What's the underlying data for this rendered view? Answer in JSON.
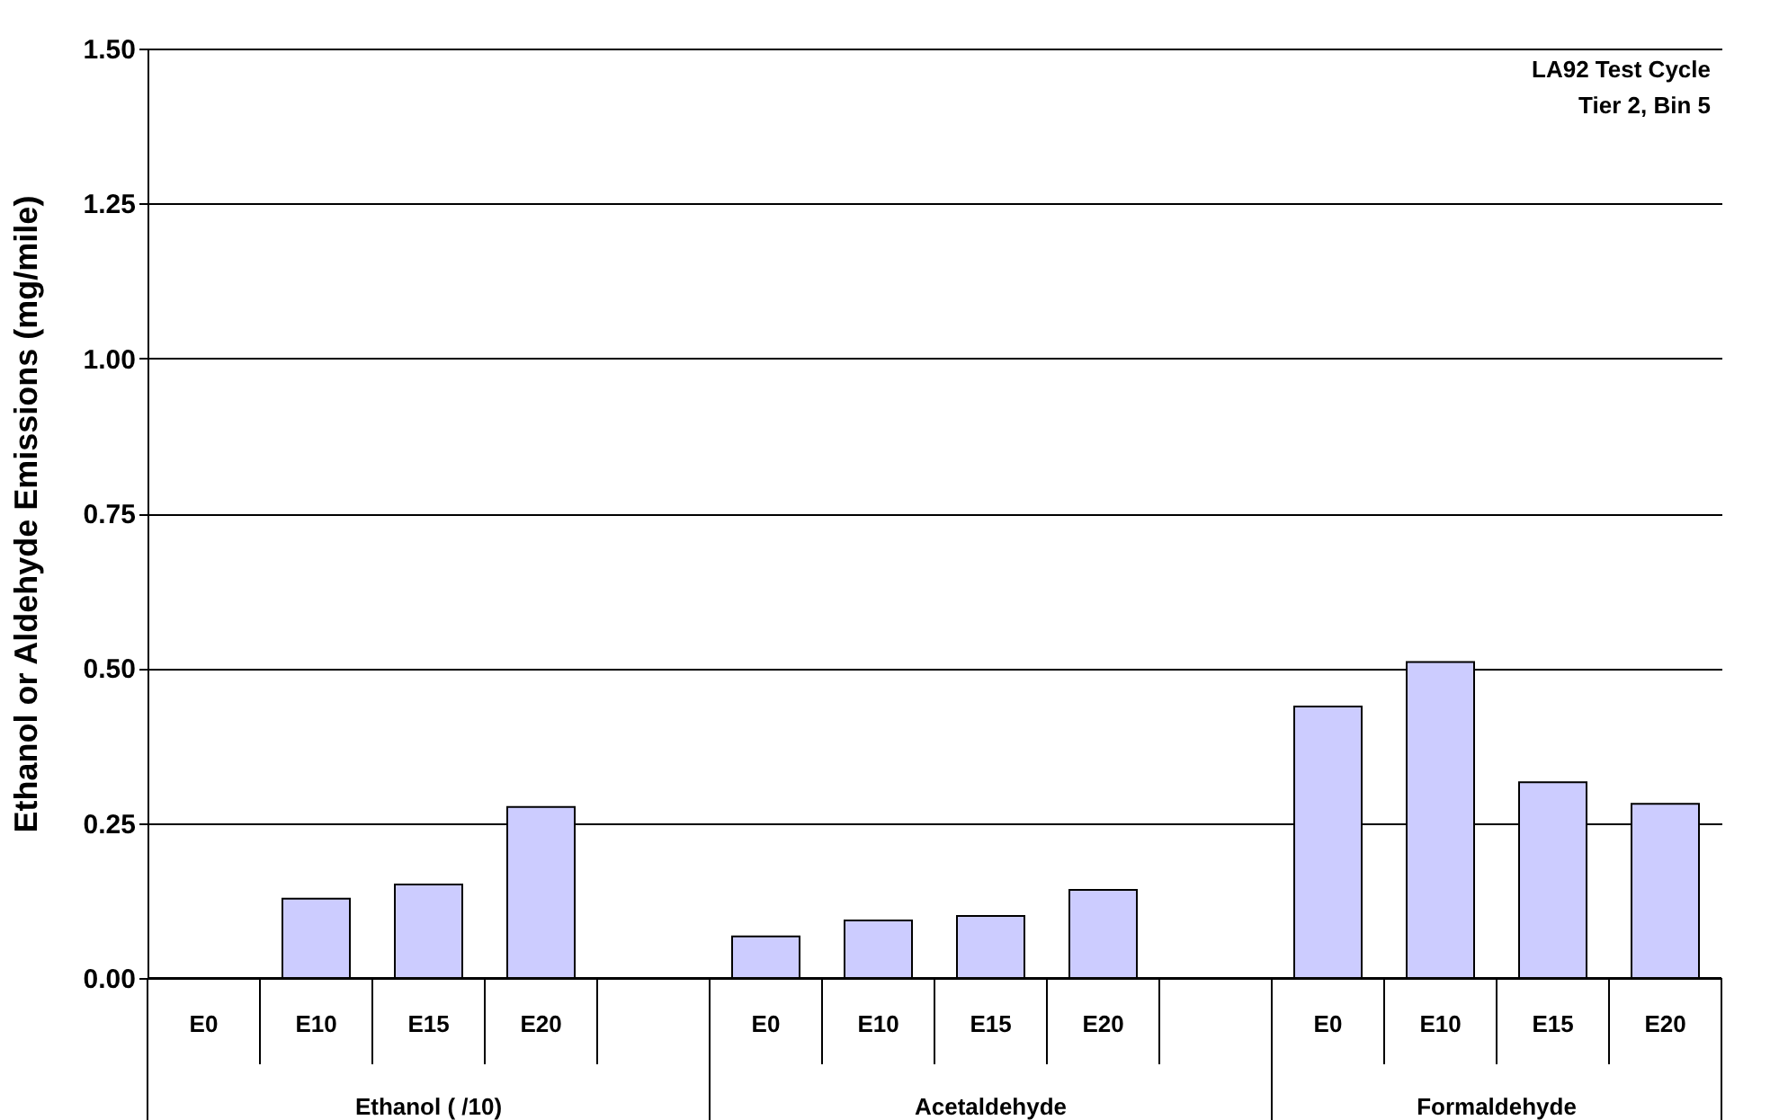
{
  "chart_data": {
    "type": "bar",
    "ylabel": "Ethanol or Aldehyde Emissions (mg/mile)",
    "categories": [
      "E0",
      "E10",
      "E15",
      "E20",
      null,
      "E0",
      "E10",
      "E15",
      "E20",
      null,
      "E0",
      "E10",
      "E15",
      "E20"
    ],
    "values": [
      null,
      0.128,
      0.151,
      0.276,
      null,
      0.067,
      0.093,
      0.1,
      0.142,
      null,
      0.438,
      0.51,
      0.316,
      0.281
    ],
    "color": "#ccccff",
    "ylim": [
      0,
      1.5
    ],
    "yticks": [
      {
        "value": 0,
        "label": "0.00"
      },
      {
        "value": 0.25,
        "label": "0.25"
      },
      {
        "value": 0.5,
        "label": "0.50"
      },
      {
        "value": 0.75,
        "label": "0.75"
      },
      {
        "value": 1.0,
        "label": "1.00"
      },
      {
        "value": 1.25,
        "label": "1.25"
      },
      {
        "value": 1.5,
        "label": "1.50"
      }
    ],
    "grid": "y",
    "annotations": [
      "LA92 Test Cycle",
      "Tier 2, Bin 5",
      "Ethanol ( /10)",
      "Acetaldehyde",
      "Formaldehyde"
    ]
  }
}
